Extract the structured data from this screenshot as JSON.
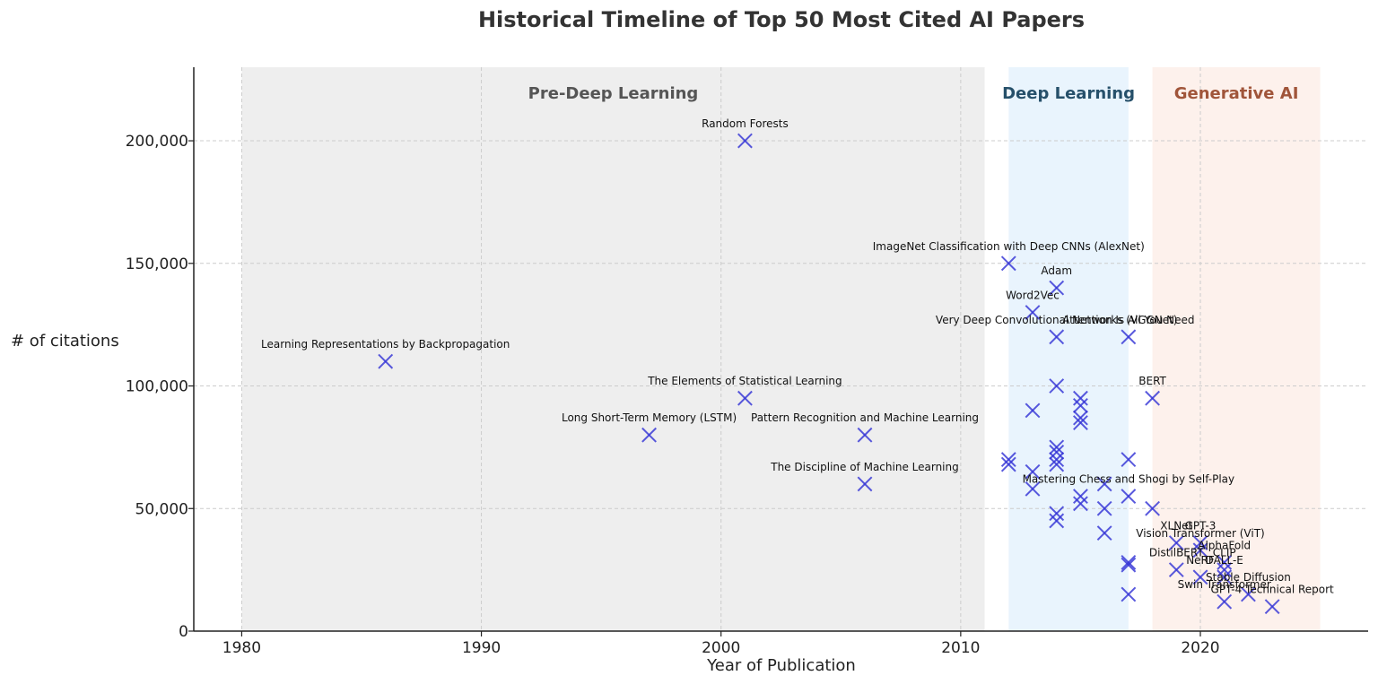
{
  "chart_data": {
    "type": "scatter",
    "title": "Historical Timeline of Top 50 Most Cited AI Papers",
    "xlabel": "Year of Publication",
    "ylabel": "# of citations",
    "xlim": [
      1978,
      2027
    ],
    "ylim": [
      0,
      230000
    ],
    "x_ticks": [
      1980,
      1990,
      2000,
      2010,
      2020
    ],
    "y_ticks": [
      0,
      50000,
      100000,
      150000,
      200000
    ],
    "y_tick_labels": [
      "0",
      "50,000",
      "100,000",
      "150,000",
      "200,000"
    ],
    "grid": true,
    "marker": "x",
    "marker_color": "#3434d6",
    "eras": [
      {
        "label": "Pre-Deep Learning",
        "start": 1980,
        "end": 2011,
        "color": "#eeeeee",
        "label_color": "#555555"
      },
      {
        "label": "Deep Learning",
        "start": 2012,
        "end": 2017,
        "color": "#e9f4fd",
        "label_color": "#26506a"
      },
      {
        "label": "Generative AI",
        "start": 2018,
        "end": 2025,
        "color": "#fdf1ec",
        "label_color": "#a0553a"
      }
    ],
    "points": [
      {
        "x": 1986,
        "y": 110000,
        "label": "Learning Representations by Backpropagation"
      },
      {
        "x": 1997,
        "y": 80000,
        "label": "Long Short-Term Memory (LSTM)"
      },
      {
        "x": 2001,
        "y": 200000,
        "label": "Random Forests"
      },
      {
        "x": 2001,
        "y": 95000,
        "label": "The Elements of Statistical Learning"
      },
      {
        "x": 2006,
        "y": 80000,
        "label": "Pattern Recognition and Machine Learning"
      },
      {
        "x": 2006,
        "y": 60000,
        "label": "The Discipline of Machine Learning"
      },
      {
        "x": 2012,
        "y": 150000,
        "label": "ImageNet Classification with Deep CNNs (AlexNet)"
      },
      {
        "x": 2012,
        "y": 70000,
        "label": ""
      },
      {
        "x": 2012,
        "y": 68000,
        "label": ""
      },
      {
        "x": 2013,
        "y": 130000,
        "label": "Word2Vec"
      },
      {
        "x": 2013,
        "y": 90000,
        "label": ""
      },
      {
        "x": 2013,
        "y": 65000,
        "label": ""
      },
      {
        "x": 2013,
        "y": 58000,
        "label": ""
      },
      {
        "x": 2014,
        "y": 140000,
        "label": "Adam"
      },
      {
        "x": 2014,
        "y": 120000,
        "label": "Very Deep Convolutional Networks (VGGNet)"
      },
      {
        "x": 2014,
        "y": 100000,
        "label": ""
      },
      {
        "x": 2014,
        "y": 75000,
        "label": ""
      },
      {
        "x": 2014,
        "y": 73000,
        "label": ""
      },
      {
        "x": 2014,
        "y": 70000,
        "label": ""
      },
      {
        "x": 2014,
        "y": 68000,
        "label": ""
      },
      {
        "x": 2014,
        "y": 48000,
        "label": ""
      },
      {
        "x": 2014,
        "y": 45000,
        "label": ""
      },
      {
        "x": 2015,
        "y": 95000,
        "label": ""
      },
      {
        "x": 2015,
        "y": 92000,
        "label": ""
      },
      {
        "x": 2015,
        "y": 87000,
        "label": ""
      },
      {
        "x": 2015,
        "y": 85000,
        "label": ""
      },
      {
        "x": 2015,
        "y": 55000,
        "label": ""
      },
      {
        "x": 2015,
        "y": 52000,
        "label": ""
      },
      {
        "x": 2016,
        "y": 60000,
        "label": ""
      },
      {
        "x": 2016,
        "y": 50000,
        "label": ""
      },
      {
        "x": 2016,
        "y": 40000,
        "label": ""
      },
      {
        "x": 2017,
        "y": 120000,
        "label": "Attention Is All You Need"
      },
      {
        "x": 2017,
        "y": 70000,
        "label": ""
      },
      {
        "x": 2017,
        "y": 55000,
        "label": "Mastering Chess and Shogi by Self-Play"
      },
      {
        "x": 2017,
        "y": 28000,
        "label": ""
      },
      {
        "x": 2017,
        "y": 27000,
        "label": ""
      },
      {
        "x": 2017,
        "y": 15000,
        "label": ""
      },
      {
        "x": 2018,
        "y": 95000,
        "label": "BERT"
      },
      {
        "x": 2018,
        "y": 50000,
        "label": ""
      },
      {
        "x": 2019,
        "y": 36000,
        "label": "XLNet"
      },
      {
        "x": 2019,
        "y": 25000,
        "label": "DistilBERT"
      },
      {
        "x": 2020,
        "y": 36000,
        "label": "GPT-3"
      },
      {
        "x": 2020,
        "y": 33000,
        "label": "Vision Transformer (ViT)"
      },
      {
        "x": 2020,
        "y": 22000,
        "label": "NeRF"
      },
      {
        "x": 2021,
        "y": 28000,
        "label": "AlphaFold"
      },
      {
        "x": 2021,
        "y": 25000,
        "label": "CLIP"
      },
      {
        "x": 2021,
        "y": 22000,
        "label": "DALL-E"
      },
      {
        "x": 2021,
        "y": 12000,
        "label": "Swin Transformer"
      },
      {
        "x": 2022,
        "y": 15000,
        "label": "Stable Diffusion"
      },
      {
        "x": 2023,
        "y": 10000,
        "label": "GPT-4 Technical Report"
      }
    ]
  }
}
